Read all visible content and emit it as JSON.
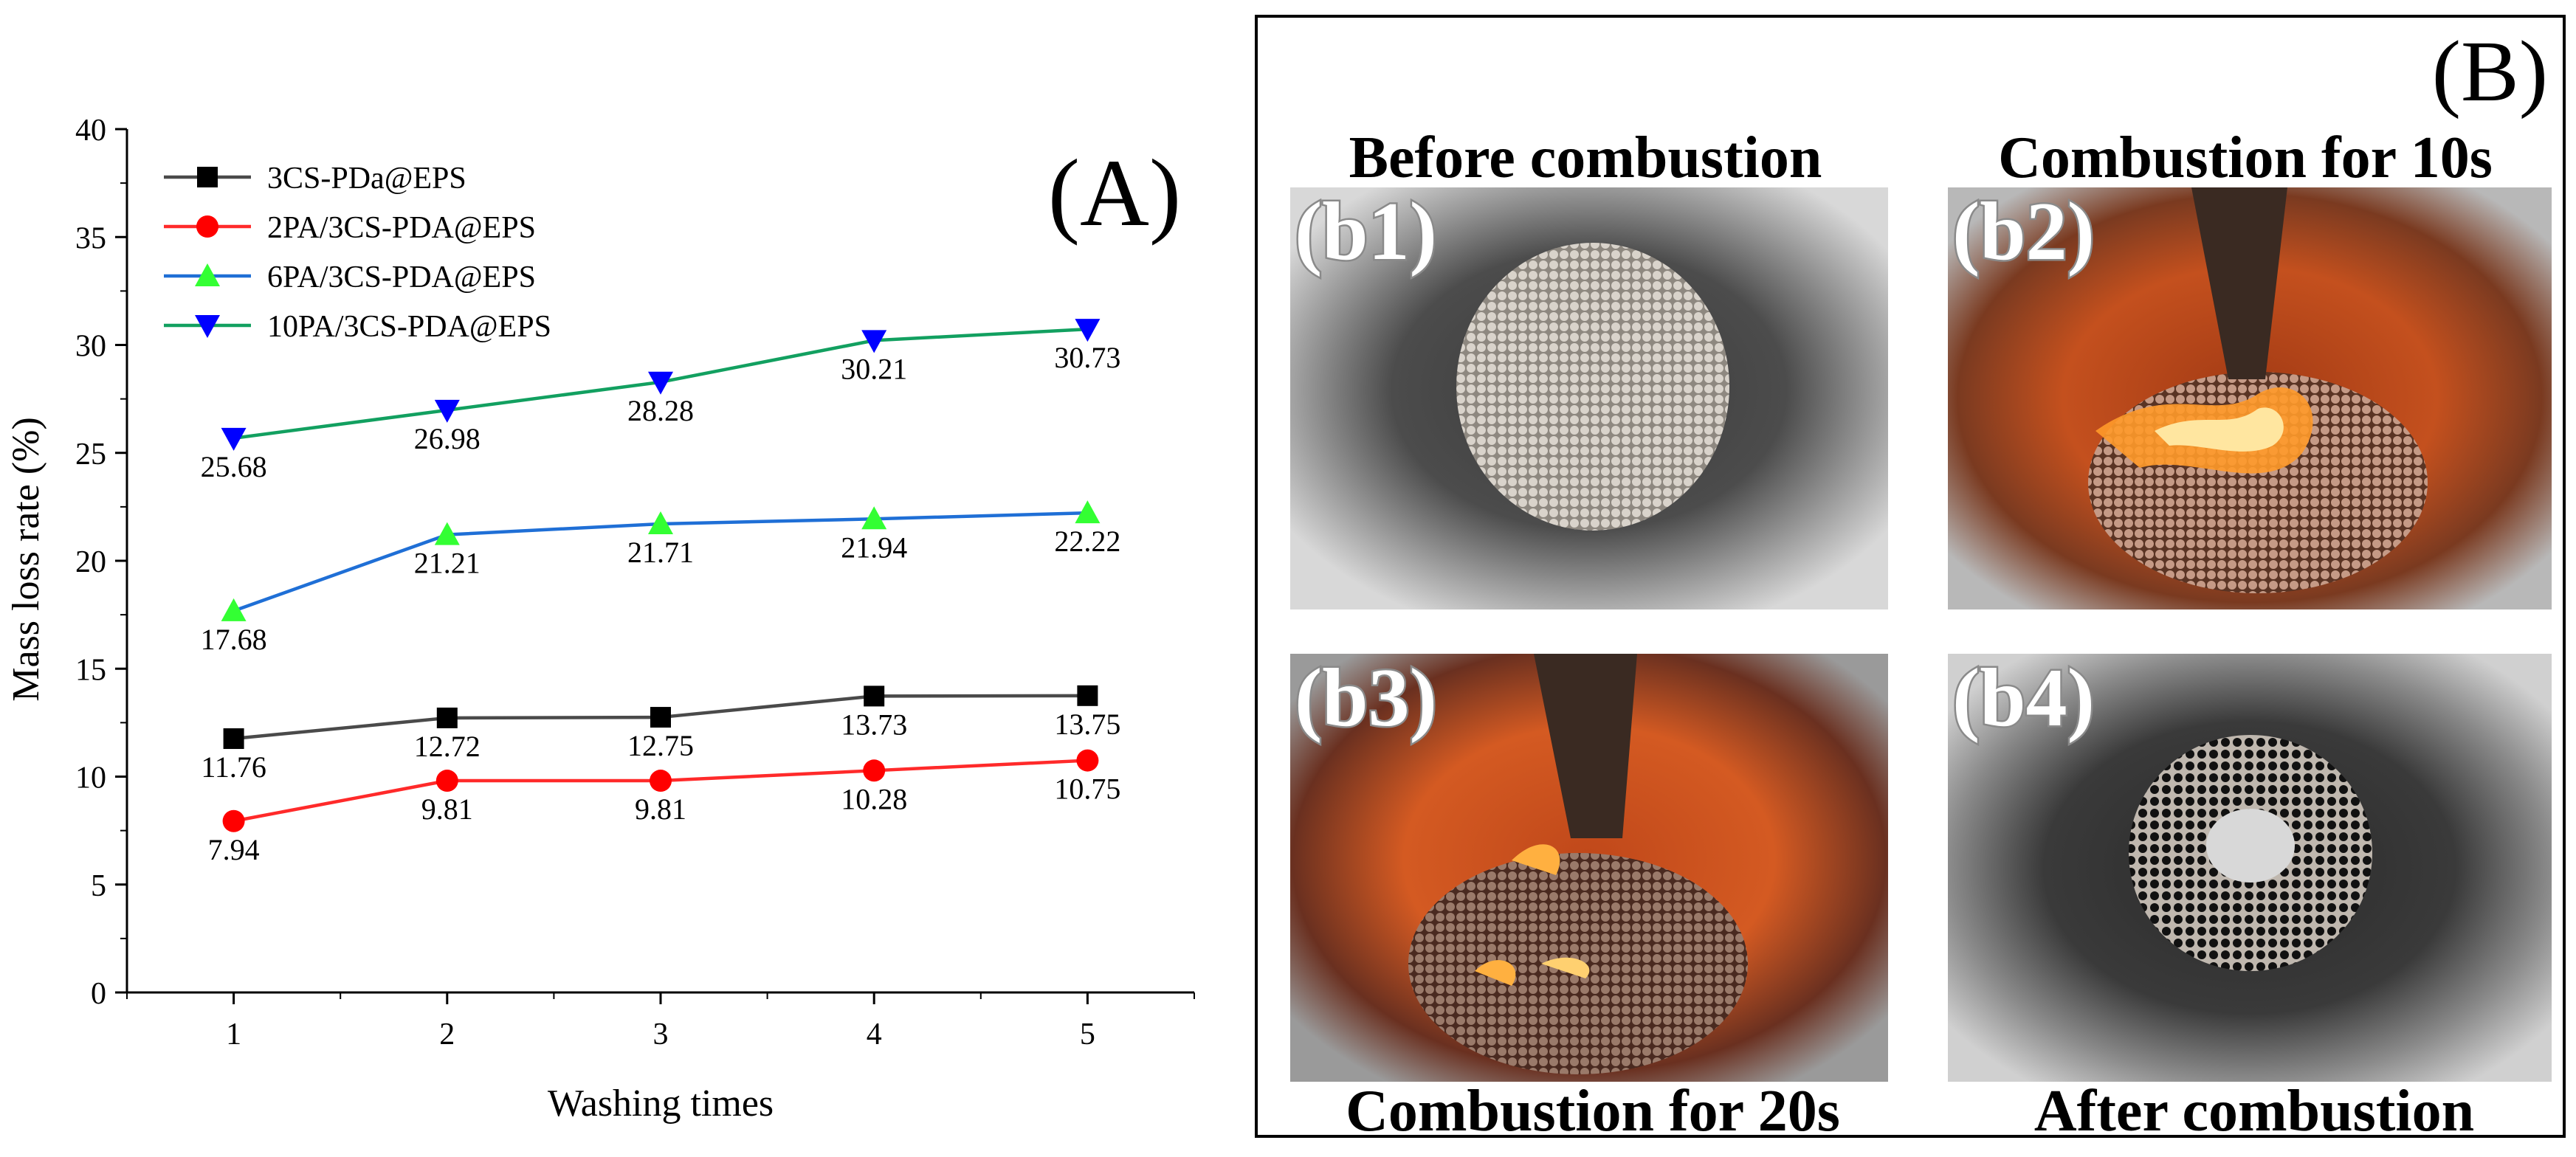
{
  "chart_data": {
    "type": "line",
    "title": "",
    "panel_label": "(A)",
    "xlabel": "Washing times",
    "ylabel": "Mass loss rate (%)",
    "x": [
      1,
      2,
      3,
      4,
      5
    ],
    "xticks": [
      "1",
      "2",
      "3",
      "4",
      "5"
    ],
    "xlim": [
      0.5,
      5.5
    ],
    "ylim": [
      0,
      40
    ],
    "yticks": [
      "0",
      "5",
      "10",
      "15",
      "20",
      "25",
      "30",
      "35",
      "40"
    ],
    "grid": false,
    "legend_position": "top-left",
    "series": [
      {
        "name": "3CS-PDa@EPS",
        "values": [
          11.76,
          12.72,
          12.75,
          13.73,
          13.75
        ],
        "labels": [
          "11.76",
          "12.72",
          "12.75",
          "13.73",
          "13.75"
        ],
        "line_color": "#4a4a4a",
        "marker_color": "#000000",
        "marker": "square"
      },
      {
        "name": "2PA/3CS-PDA@EPS",
        "values": [
          7.94,
          9.81,
          9.81,
          10.28,
          10.75
        ],
        "labels": [
          "7.94",
          "9.81",
          "9.81",
          "10.28",
          "10.75"
        ],
        "line_color": "#ff2a2a",
        "marker_color": "#ff0000",
        "marker": "circle"
      },
      {
        "name": "6PA/3CS-PDA@EPS",
        "values": [
          17.68,
          21.21,
          21.71,
          21.94,
          22.22
        ],
        "labels": [
          "17.68",
          "21.21",
          "21.71",
          "21.94",
          "22.22"
        ],
        "line_color": "#1f6fd6",
        "marker_color": "#33ff33",
        "marker": "triangle-up"
      },
      {
        "name": "10PA/3CS-PDA@EPS",
        "values": [
          25.68,
          26.98,
          28.28,
          30.21,
          30.73
        ],
        "labels": [
          "25.68",
          "26.98",
          "28.28",
          "30.21",
          "30.73"
        ],
        "line_color": "#12a060",
        "marker_color": "#0000ff",
        "marker": "triangle-down"
      }
    ]
  },
  "panel_b": {
    "label": "(B)",
    "photos": [
      {
        "tag": "(b1)",
        "caption": "Before combustion",
        "icon": "combustion-photo"
      },
      {
        "tag": "(b2)",
        "caption": "Combustion for 10s",
        "icon": "combustion-photo"
      },
      {
        "tag": "(b3)",
        "caption": "Combustion for 20s",
        "icon": "combustion-photo"
      },
      {
        "tag": "(b4)",
        "caption": "After combustion",
        "icon": "combustion-photo"
      }
    ]
  }
}
